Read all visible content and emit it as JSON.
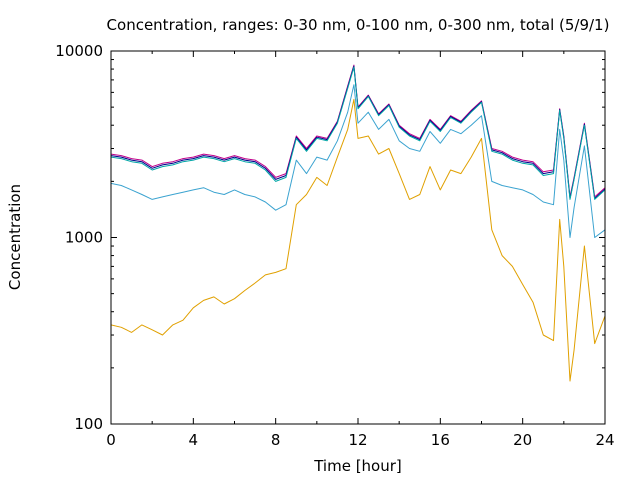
{
  "chart_data": {
    "type": "line",
    "title": "Concentration, ranges: 0-30 nm, 0-100 nm, 0-300 nm, total (5/9/1)",
    "xlabel": "Time [hour]",
    "ylabel": "Concentration",
    "xlim": [
      0,
      24
    ],
    "ylim": [
      100,
      10000
    ],
    "yscale": "log",
    "grid": false,
    "legend": "none",
    "x_ticks": [
      0,
      4,
      8,
      12,
      16,
      20,
      24
    ],
    "x_tick_labels": [
      "0",
      "4",
      "8",
      "12",
      "16",
      "20",
      "24"
    ],
    "y_ticks": [
      100,
      1000,
      10000
    ],
    "y_tick_labels": [
      "100",
      "1000",
      "10000"
    ],
    "x": [
      0,
      0.5,
      1,
      1.5,
      2,
      2.5,
      3,
      3.5,
      4,
      4.5,
      5,
      5.5,
      6,
      6.5,
      7,
      7.5,
      8,
      8.5,
      9,
      9.5,
      10,
      10.5,
      11,
      11.5,
      11.8,
      12,
      12.5,
      13,
      13.5,
      14,
      14.5,
      15,
      15.5,
      16,
      16.5,
      17,
      17.5,
      18,
      18.5,
      19,
      19.5,
      20,
      20.5,
      21,
      21.5,
      21.8,
      22,
      22.3,
      22.5,
      23,
      23.5,
      24
    ],
    "series": [
      {
        "color": "#c0008a",
        "values": [
          2800,
          2750,
          2650,
          2600,
          2400,
          2500,
          2550,
          2650,
          2700,
          2800,
          2750,
          2650,
          2750,
          2650,
          2600,
          2400,
          2100,
          2200,
          3500,
          3000,
          3500,
          3400,
          4200,
          6500,
          8400,
          5000,
          5800,
          4600,
          5200,
          4000,
          3600,
          3400,
          4300,
          3800,
          4500,
          4200,
          4800,
          5400,
          3000,
          2900,
          2700,
          2600,
          2550,
          2250,
          2300,
          4900,
          3500,
          1650,
          2100,
          4100,
          1650,
          1850
        ]
      },
      {
        "color": "#00008b",
        "values": [
          2750,
          2700,
          2600,
          2550,
          2350,
          2450,
          2500,
          2600,
          2650,
          2750,
          2700,
          2600,
          2700,
          2600,
          2550,
          2350,
          2050,
          2150,
          3450,
          2950,
          3450,
          3350,
          4150,
          6400,
          8300,
          4950,
          5750,
          4550,
          5150,
          3950,
          3550,
          3350,
          4250,
          3750,
          4450,
          4150,
          4750,
          5350,
          2950,
          2850,
          2650,
          2550,
          2500,
          2200,
          2250,
          4850,
          3450,
          1620,
          2070,
          4050,
          1620,
          1820
        ]
      },
      {
        "color": "#00a6a6",
        "values": [
          2700,
          2650,
          2550,
          2500,
          2300,
          2400,
          2450,
          2550,
          2600,
          2700,
          2650,
          2550,
          2650,
          2550,
          2500,
          2300,
          2000,
          2100,
          3400,
          2900,
          3400,
          3300,
          4100,
          6300,
          8200,
          4900,
          5700,
          4500,
          5100,
          3900,
          3500,
          3300,
          4200,
          3700,
          4400,
          4100,
          4700,
          5300,
          2900,
          2800,
          2600,
          2500,
          2450,
          2150,
          2200,
          4800,
          3400,
          1600,
          2050,
          4000,
          1600,
          1800
        ]
      },
      {
        "color": "#3ba3d0",
        "values": [
          1950,
          1900,
          1800,
          1700,
          1600,
          1650,
          1700,
          1750,
          1800,
          1850,
          1750,
          1700,
          1800,
          1700,
          1650,
          1550,
          1400,
          1500,
          2600,
          2200,
          2700,
          2600,
          3300,
          4700,
          6600,
          4100,
          4700,
          3800,
          4300,
          3300,
          3000,
          2900,
          3700,
          3200,
          3800,
          3600,
          4000,
          4500,
          2000,
          1900,
          1850,
          1800,
          1700,
          1550,
          1500,
          3800,
          2600,
          1000,
          1450,
          3100,
          1000,
          1100
        ]
      },
      {
        "color": "#e0a000",
        "values": [
          340,
          330,
          310,
          340,
          320,
          300,
          340,
          360,
          420,
          460,
          480,
          440,
          470,
          520,
          570,
          630,
          650,
          680,
          1500,
          1700,
          2100,
          1900,
          2700,
          3800,
          5500,
          3400,
          3500,
          2800,
          3000,
          2200,
          1600,
          1700,
          2400,
          1800,
          2300,
          2200,
          2700,
          3400,
          1100,
          800,
          700,
          560,
          450,
          300,
          280,
          1250,
          700,
          170,
          250,
          900,
          270,
          380
        ]
      }
    ]
  }
}
